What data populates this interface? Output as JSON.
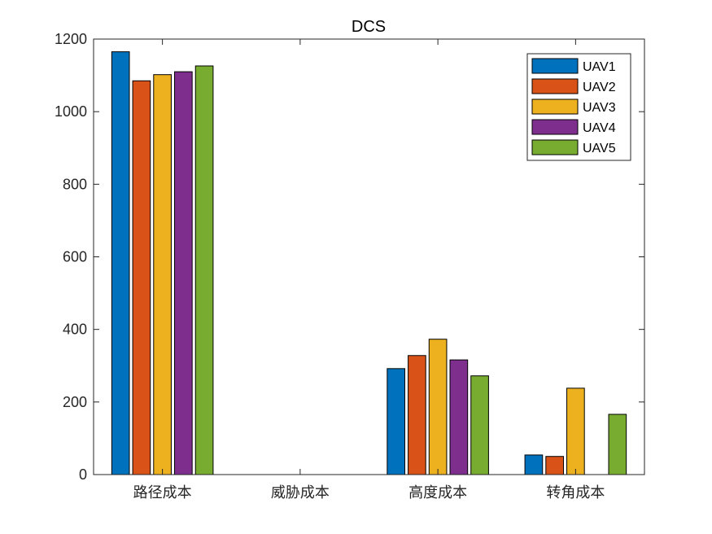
{
  "chart_data": {
    "type": "bar",
    "title": "DCS",
    "xlabel": "",
    "ylabel": "",
    "categories": [
      "路径成本",
      "威胁成本",
      "高度成本",
      "转角成本"
    ],
    "ylim": [
      0,
      1200
    ],
    "yticks": [
      0,
      200,
      400,
      600,
      800,
      1000,
      1200
    ],
    "grid": false,
    "legend_position": "top-right",
    "series": [
      {
        "name": "UAV1",
        "color": "#0072BD",
        "values": [
          1165,
          0,
          292,
          54
        ]
      },
      {
        "name": "UAV2",
        "color": "#D95319",
        "values": [
          1085,
          0,
          328,
          50
        ]
      },
      {
        "name": "UAV3",
        "color": "#EDB120",
        "values": [
          1102,
          0,
          373,
          238
        ]
      },
      {
        "name": "UAV4",
        "color": "#7E2F8E",
        "values": [
          1110,
          0,
          316,
          0
        ]
      },
      {
        "name": "UAV5",
        "color": "#77AC30",
        "values": [
          1126,
          0,
          272,
          166
        ]
      }
    ]
  }
}
